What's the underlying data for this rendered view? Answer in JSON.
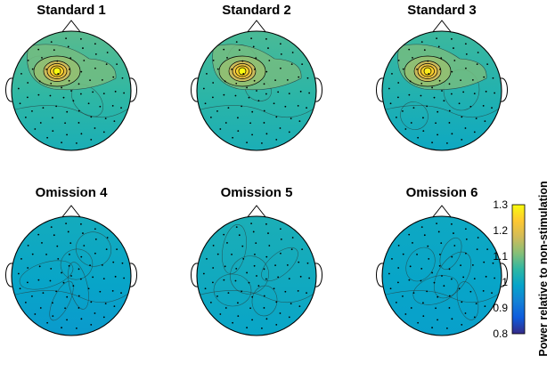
{
  "chart_data": {
    "type": "heatmap",
    "description_kind": "scalp topographic maps",
    "panels": [
      {
        "title": "Standard 1",
        "peak": {
          "label": "left-frontal maximum",
          "value": 1.3
        },
        "background_value": 1.08,
        "posterior_value": 1.02
      },
      {
        "title": "Standard 2",
        "peak": {
          "label": "left-frontal maximum",
          "value": 1.3
        },
        "background_value": 1.07,
        "posterior_value": 1.02
      },
      {
        "title": "Standard 3",
        "peak": {
          "label": "left-frontal maximum",
          "value": 1.28
        },
        "background_value": 1.06,
        "posterior_value": 1.0
      },
      {
        "title": "Omission 4",
        "peak": null,
        "background_value": 1.01,
        "posterior_value": 0.97
      },
      {
        "title": "Omission 5",
        "peak": null,
        "background_value": 1.02,
        "posterior_value": 0.99
      },
      {
        "title": "Omission 6",
        "peak": null,
        "background_value": 1.0,
        "posterior_value": 0.98
      }
    ],
    "colorbar": {
      "label": "Power relative to non-stimulation",
      "range": [
        0.8,
        1.3
      ],
      "ticks": [
        "0.8",
        "0.9",
        "1",
        "1.1",
        "1.2",
        "1.3"
      ],
      "colormap": "parula",
      "colors": [
        "#352a87",
        "#0f5cdd",
        "#1481d6",
        "#06a4ca",
        "#2eb7a4",
        "#87bf77",
        "#d1bb59",
        "#fec832",
        "#f9fb0e"
      ]
    },
    "grid": false,
    "legend": "colorbar-right"
  }
}
